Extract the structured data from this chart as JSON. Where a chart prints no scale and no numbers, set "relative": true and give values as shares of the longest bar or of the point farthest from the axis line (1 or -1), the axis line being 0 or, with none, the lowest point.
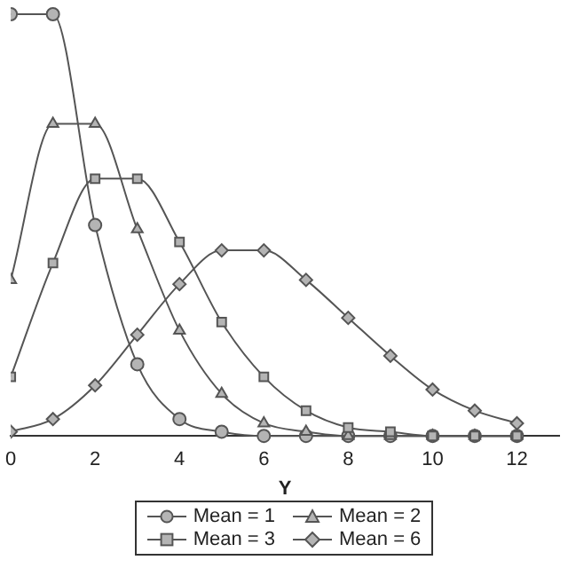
{
  "chart_data": {
    "type": "line",
    "xlabel": "Y",
    "relative": true,
    "x": [
      0,
      1,
      2,
      3,
      4,
      5,
      6,
      7,
      8,
      9,
      10,
      11,
      12
    ],
    "xlim": [
      0,
      13
    ],
    "xticks": [
      0,
      2,
      4,
      6,
      8,
      10,
      12
    ],
    "grid": false,
    "legend": "bottom",
    "line_style": "solid",
    "series": [
      {
        "name": "Mean = 1",
        "color": "#555555",
        "marker": "circle",
        "values": [
          1,
          1,
          0.5,
          0.17,
          0.04,
          0.01,
          0,
          0,
          0,
          0,
          0,
          0,
          0
        ]
      },
      {
        "name": "Mean = 2",
        "color": "#555555",
        "marker": "triangle",
        "values": [
          0.37,
          0.74,
          0.74,
          0.49,
          0.25,
          0.1,
          0.03,
          0.01,
          0,
          0,
          0,
          0,
          0
        ]
      },
      {
        "name": "Mean = 3",
        "color": "#555555",
        "marker": "square",
        "values": [
          0.14,
          0.41,
          0.61,
          0.61,
          0.46,
          0.27,
          0.14,
          0.06,
          0.02,
          0.01,
          0,
          0,
          0
        ]
      },
      {
        "name": "Mean = 6",
        "color": "#555555",
        "marker": "diamond",
        "values": [
          0.01,
          0.04,
          0.12,
          0.24,
          0.36,
          0.44,
          0.44,
          0.37,
          0.28,
          0.19,
          0.11,
          0.06,
          0.03
        ]
      }
    ]
  }
}
